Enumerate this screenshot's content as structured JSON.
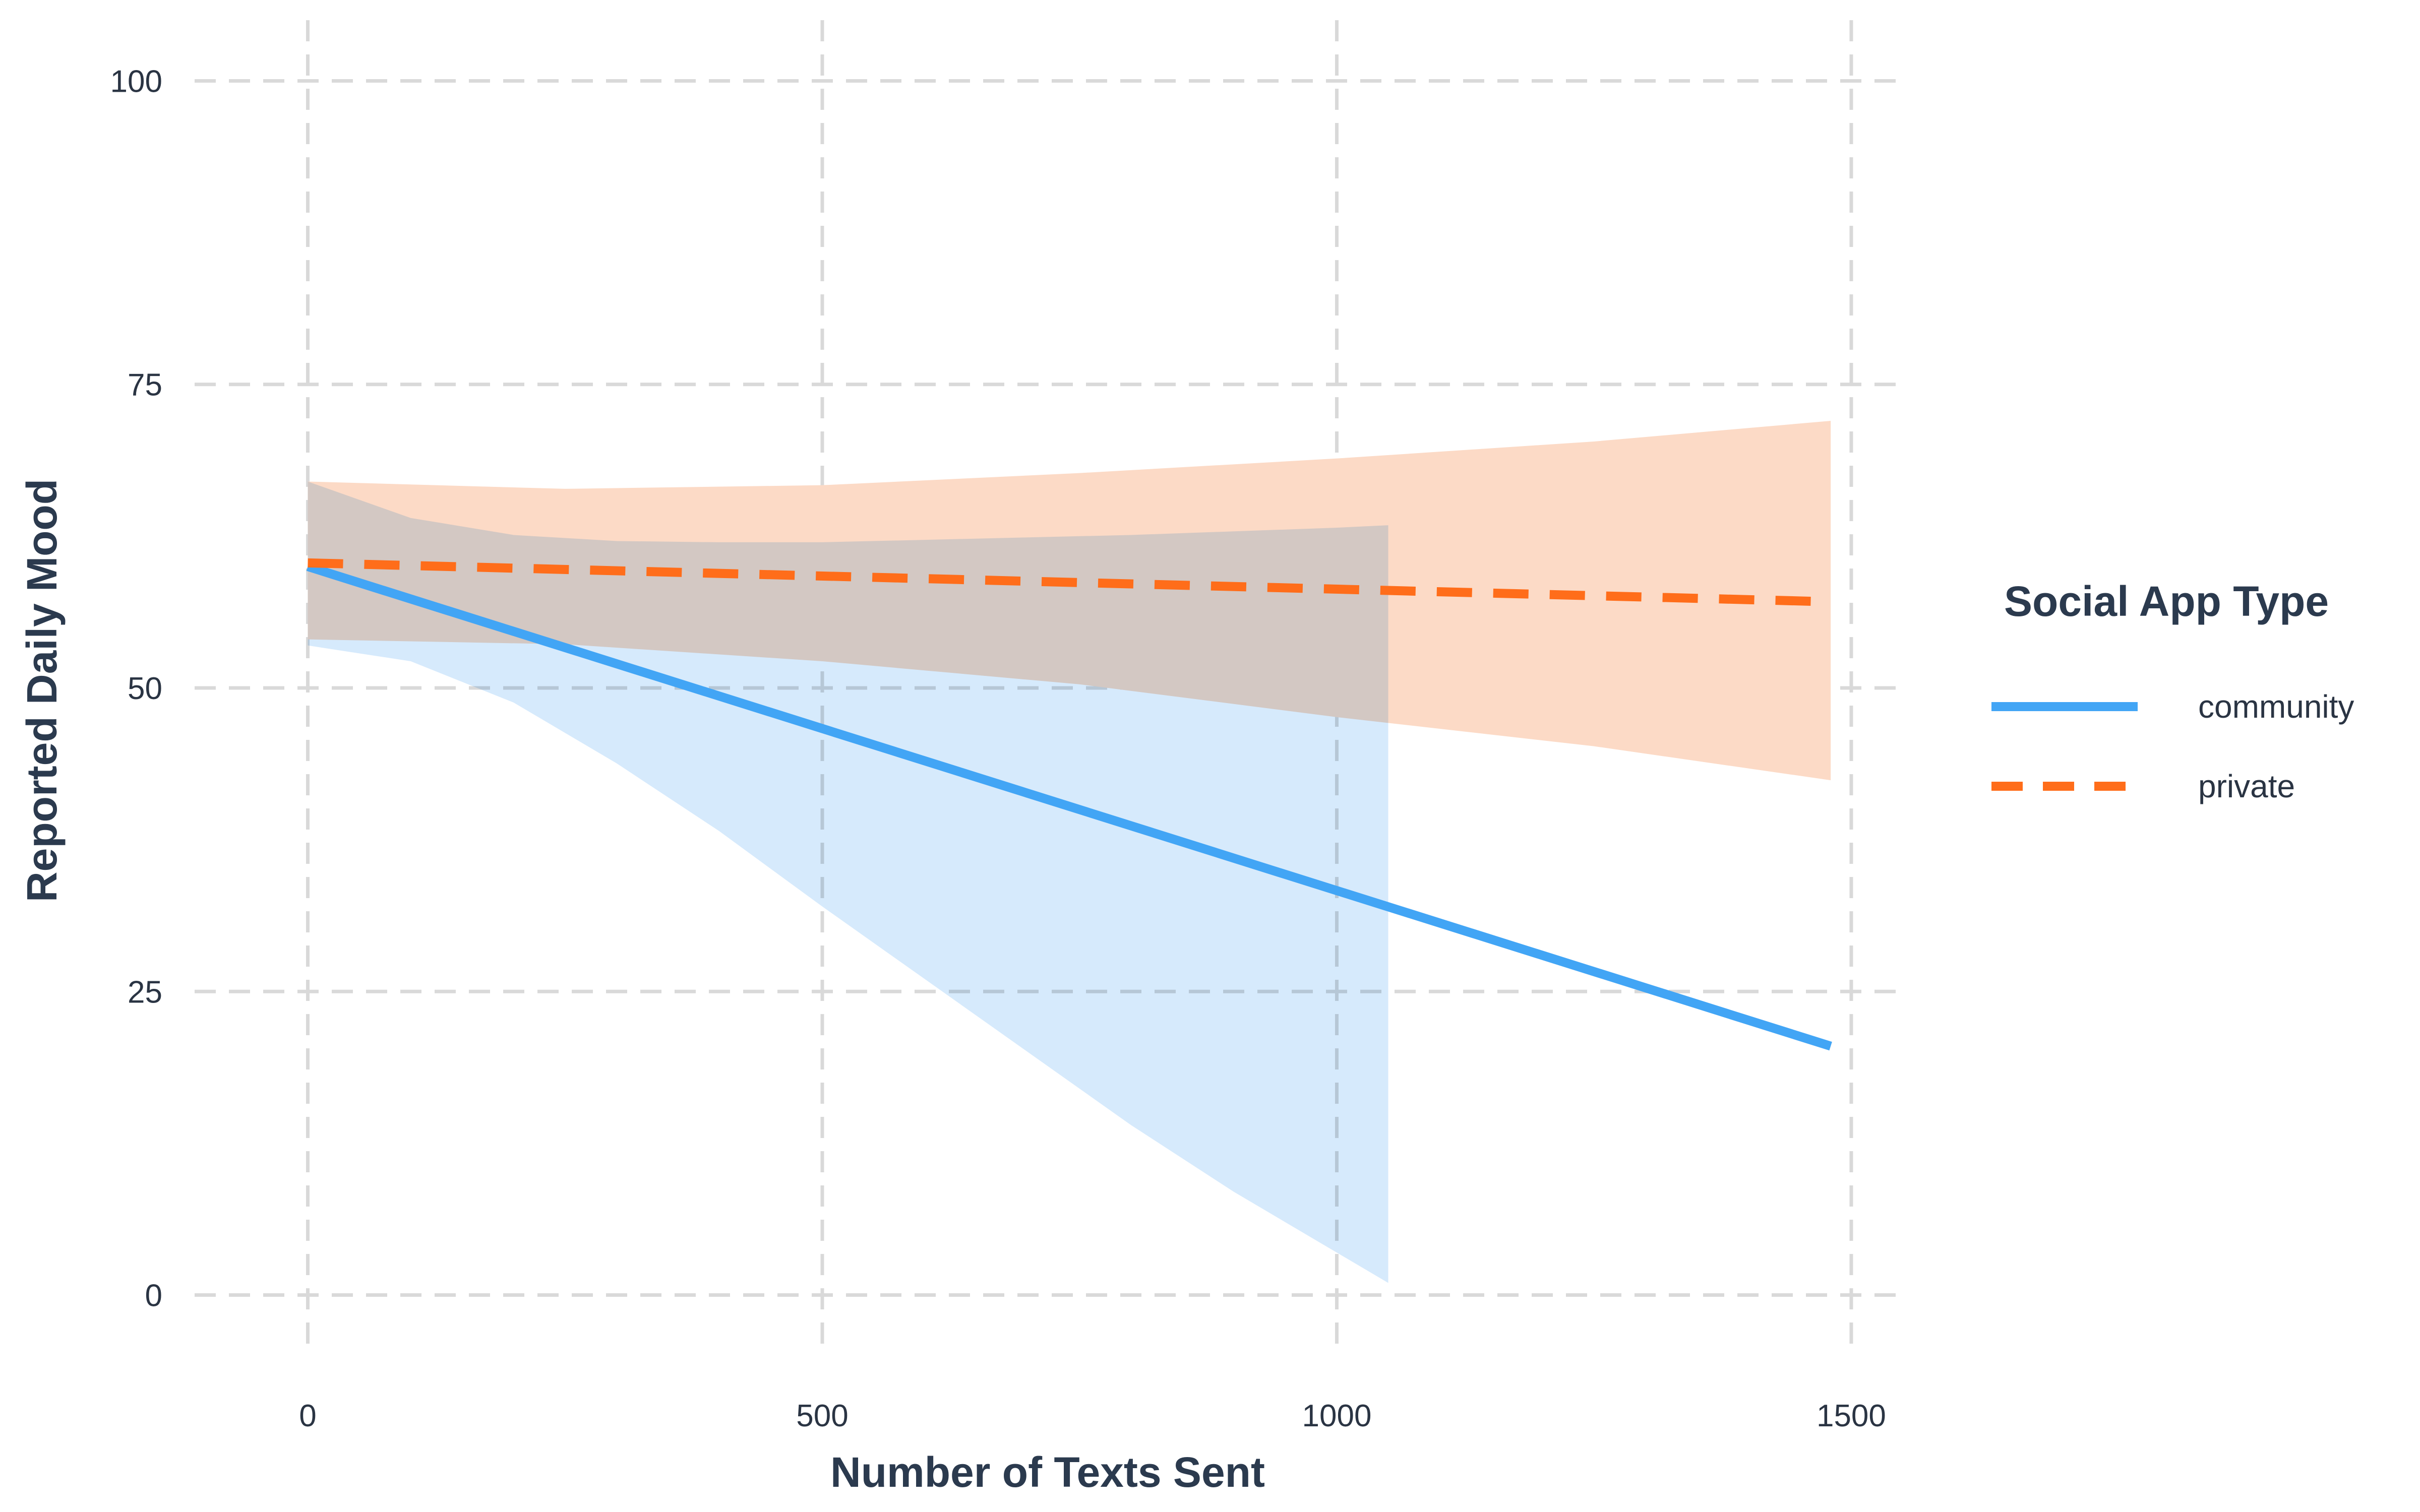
{
  "chart_data": {
    "type": "line",
    "title": "",
    "xlabel": "Number of Texts Sent",
    "ylabel": "Reported Daily Mood",
    "xlim": [
      -110,
      1550
    ],
    "ylim": [
      -5,
      105
    ],
    "x_ticks": [
      0,
      500,
      1000,
      1500
    ],
    "y_ticks": [
      0,
      25,
      50,
      75,
      100
    ],
    "grid": true,
    "legend": {
      "title": "Social App Type",
      "position": "right"
    },
    "series": [
      {
        "name": "community",
        "color": "#42a5f5",
        "line_style": "solid",
        "line": [
          [
            0,
            60
          ],
          [
            1480,
            20.5
          ]
        ],
        "band_color": "#cfe6fb",
        "band": [
          [
            0,
            67,
            53.5
          ],
          [
            100,
            64,
            52.2
          ],
          [
            200,
            62.6,
            48.8
          ],
          [
            300,
            62.1,
            43.8
          ],
          [
            400,
            62,
            38.2
          ],
          [
            500,
            62,
            32
          ],
          [
            600,
            62.2,
            26
          ],
          [
            700,
            62.4,
            20
          ],
          [
            800,
            62.6,
            14
          ],
          [
            900,
            62.9,
            8.5
          ],
          [
            1000,
            63.2,
            3.5
          ],
          [
            1050,
            63.4,
            1
          ]
        ]
      },
      {
        "name": "private",
        "color": "#ff6d1a",
        "line_style": "dashed",
        "line": [
          [
            0,
            60.3
          ],
          [
            1480,
            57.1
          ]
        ],
        "band_color": "#fcdac6",
        "band": [
          [
            0,
            67,
            54
          ],
          [
            250,
            66.4,
            53.6
          ],
          [
            500,
            66.7,
            52.2
          ],
          [
            750,
            67.7,
            50.3
          ],
          [
            1000,
            68.9,
            47.6
          ],
          [
            1250,
            70.3,
            45.2
          ],
          [
            1480,
            72,
            42.4
          ]
        ]
      }
    ]
  }
}
